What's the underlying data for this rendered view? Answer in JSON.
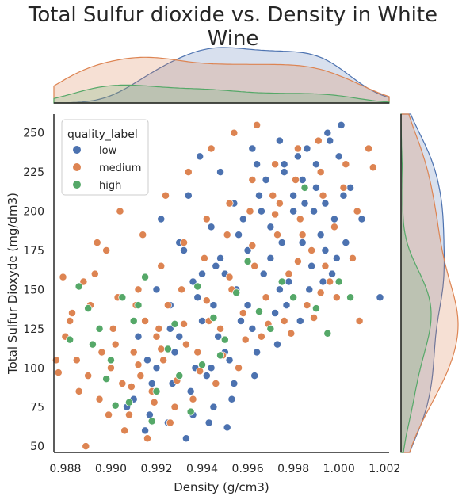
{
  "chart_data": {
    "type": "scatter",
    "title": "Total Sulfur dioxide vs. Density in White Wine",
    "xlabel": "Density (g/cm3)",
    "ylabel": "Total Sulfur Dioxyde (mg/dm3)",
    "xlim": [
      0.9875,
      1.0022
    ],
    "ylim": [
      46,
      262
    ],
    "x_ticks": [
      "0.988",
      "0.990",
      "0.992",
      "0.994",
      "0.996",
      "0.998",
      "1.000",
      "1.002"
    ],
    "x_tick_values": [
      0.988,
      0.99,
      0.992,
      0.994,
      0.996,
      0.998,
      1.0,
      1.002
    ],
    "y_ticks": [
      "50",
      "75",
      "100",
      "125",
      "150",
      "175",
      "200",
      "225",
      "250"
    ],
    "y_tick_values": [
      50,
      75,
      100,
      125,
      150,
      175,
      200,
      225,
      250
    ],
    "grid": false,
    "legend": {
      "title": "quality_label",
      "placement": "top-left"
    },
    "marginals": {
      "top": "kde of density by quality_label",
      "right": "kde of total sulfur dioxide by quality_label"
    },
    "series": [
      {
        "name": "low",
        "color": "#4c72b0",
        "points": [
          [
            0.993,
            120
          ],
          [
            0.9945,
            140
          ],
          [
            0.996,
            175
          ],
          [
            0.997,
            190
          ],
          [
            0.995,
            160
          ],
          [
            0.998,
            200
          ],
          [
            0.9965,
            210
          ],
          [
            0.9975,
            180
          ],
          [
            0.994,
            130
          ],
          [
            0.9955,
            150
          ],
          [
            0.9985,
            205
          ],
          [
            0.999,
            230
          ],
          [
            0.9995,
            250
          ],
          [
            0.9982,
            235
          ],
          [
            0.9968,
            220
          ],
          [
            0.9958,
            195
          ],
          [
            0.9948,
            170
          ],
          [
            0.9938,
            145
          ],
          [
            0.9928,
            110
          ],
          [
            0.9918,
            90
          ],
          [
            0.992,
            100
          ],
          [
            0.9935,
            85
          ],
          [
            0.9945,
            75
          ],
          [
            0.9925,
            65
          ],
          [
            0.9915,
            60
          ],
          [
            0.991,
            80
          ],
          [
            0.9942,
            95
          ],
          [
            0.9952,
            105
          ],
          [
            0.9962,
            125
          ],
          [
            0.9972,
            135
          ],
          [
            0.9978,
            155
          ],
          [
            0.9988,
            165
          ],
          [
            0.9992,
            185
          ],
          [
            0.9998,
            195
          ],
          [
            1.0002,
            210
          ],
          [
            1.0005,
            215
          ],
          [
            1.0001,
            255
          ],
          [
            0.9996,
            245
          ],
          [
            0.9986,
            240
          ],
          [
            0.9976,
            225
          ],
          [
            0.9966,
            200
          ],
          [
            0.9956,
            185
          ],
          [
            0.9946,
            165
          ],
          [
            0.9936,
            155
          ],
          [
            0.9926,
            140
          ],
          [
            0.9932,
            175
          ],
          [
            0.9944,
            190
          ],
          [
            0.9954,
            205
          ],
          [
            0.9964,
            230
          ],
          [
            0.9974,
            245
          ],
          [
            0.9984,
            220
          ],
          [
            0.9994,
            175
          ],
          [
            0.9997,
            160
          ],
          [
            0.9987,
            150
          ],
          [
            0.9977,
            140
          ],
          [
            0.9967,
            160
          ],
          [
            0.9957,
            130
          ],
          [
            0.9947,
            120
          ],
          [
            0.9937,
            100
          ],
          [
            0.9927,
            90
          ],
          [
            0.9917,
            70
          ],
          [
            0.9907,
            75
          ],
          [
            0.9933,
            55
          ],
          [
            0.9943,
            65
          ],
          [
            0.9953,
            80
          ],
          [
            0.9963,
            95
          ],
          [
            0.9973,
            115
          ],
          [
            0.9983,
            130
          ],
          [
            0.9993,
            155
          ],
          [
            1.0003,
            180
          ],
          [
            1.001,
            195
          ],
          [
            1.0018,
            145
          ],
          [
            1.0,
            235
          ],
          [
            0.999,
            215
          ],
          [
            0.998,
            210
          ],
          [
            0.997,
            170
          ],
          [
            0.996,
            140
          ],
          [
            0.995,
            110
          ],
          [
            0.994,
            160
          ],
          [
            0.993,
            180
          ],
          [
            0.992,
            150
          ],
          [
            0.9912,
            120
          ],
          [
            0.9922,
            195
          ],
          [
            0.9934,
            210
          ],
          [
            0.9948,
            225
          ],
          [
            0.9962,
            240
          ],
          [
            0.9976,
            230
          ],
          [
            0.9989,
            200
          ],
          [
            0.9999,
            170
          ],
          [
            0.9944,
            100
          ],
          [
            0.9954,
            90
          ],
          [
            0.9964,
            110
          ],
          [
            0.9974,
            150
          ],
          [
            0.9984,
            180
          ],
          [
            0.9994,
            205
          ],
          [
            0.9951,
            62
          ],
          [
            0.9936,
            70
          ],
          [
            0.9926,
            125
          ],
          [
            0.9916,
            105
          ],
          [
            0.9939,
            235
          ]
        ]
      },
      {
        "name": "medium",
        "color": "#dd8452",
        "points": [
          [
            0.99,
            100
          ],
          [
            0.991,
            110
          ],
          [
            0.992,
            120
          ],
          [
            0.9905,
            90
          ],
          [
            0.9915,
            130
          ],
          [
            0.9925,
            140
          ],
          [
            0.9895,
            80
          ],
          [
            0.989,
            95
          ],
          [
            0.9885,
            105
          ],
          [
            0.9908,
            70
          ],
          [
            0.9918,
            85
          ],
          [
            0.9928,
            75
          ],
          [
            0.9938,
            110
          ],
          [
            0.9948,
            125
          ],
          [
            0.9958,
            135
          ],
          [
            0.9968,
            145
          ],
          [
            0.9978,
            160
          ],
          [
            0.9988,
            175
          ],
          [
            0.9998,
            190
          ],
          [
            1.0008,
            200
          ],
          [
            0.9912,
            150
          ],
          [
            0.9922,
            165
          ],
          [
            0.9932,
            180
          ],
          [
            0.9942,
            195
          ],
          [
            0.9952,
            205
          ],
          [
            0.9962,
            220
          ],
          [
            0.9972,
            230
          ],
          [
            0.9982,
            240
          ],
          [
            0.9992,
            225
          ],
          [
            1.0002,
            215
          ],
          [
            0.988,
            120
          ],
          [
            0.9883,
            135
          ],
          [
            0.9888,
            155
          ],
          [
            0.9893,
            160
          ],
          [
            0.9898,
            175
          ],
          [
            0.9903,
            145
          ],
          [
            0.9913,
            95
          ],
          [
            0.9923,
            105
          ],
          [
            0.9933,
            115
          ],
          [
            0.9943,
            130
          ],
          [
            0.9953,
            150
          ],
          [
            0.9963,
            165
          ],
          [
            0.9973,
            185
          ],
          [
            0.9983,
            195
          ],
          [
            0.9993,
            210
          ],
          [
            1.0003,
            230
          ],
          [
            1.0013,
            240
          ],
          [
            0.9906,
            60
          ],
          [
            0.9916,
            55
          ],
          [
            0.9926,
            65
          ],
          [
            0.9936,
            80
          ],
          [
            0.9946,
            90
          ],
          [
            0.9956,
            100
          ],
          [
            0.9966,
            120
          ],
          [
            0.9976,
            130
          ],
          [
            0.9986,
            140
          ],
          [
            0.9996,
            155
          ],
          [
            1.0006,
            170
          ],
          [
            0.9911,
            140
          ],
          [
            0.9921,
            125
          ],
          [
            0.9931,
            150
          ],
          [
            0.9941,
            170
          ],
          [
            0.9951,
            185
          ],
          [
            0.9961,
            200
          ],
          [
            0.9971,
            210
          ],
          [
            0.9981,
            220
          ],
          [
            0.9991,
            245
          ],
          [
            0.9886,
            85
          ],
          [
            0.9896,
            110
          ],
          [
            0.9901,
            125
          ],
          [
            0.9891,
            140
          ],
          [
            0.9876,
            105
          ],
          [
            0.9879,
            158
          ],
          [
            0.9882,
            130
          ],
          [
            0.9894,
            180
          ],
          [
            0.9904,
            200
          ],
          [
            0.9914,
            185
          ],
          [
            0.9924,
            210
          ],
          [
            0.9934,
            225
          ],
          [
            0.9944,
            240
          ],
          [
            0.9954,
            250
          ],
          [
            0.9964,
            255
          ],
          [
            0.9974,
            205
          ],
          [
            0.9984,
            185
          ],
          [
            0.9994,
            165
          ],
          [
            0.9889,
            50
          ],
          [
            0.9899,
            70
          ],
          [
            0.9909,
            88
          ],
          [
            0.9919,
            78
          ],
          [
            0.9929,
            92
          ],
          [
            0.9939,
            98
          ],
          [
            0.9949,
            108
          ],
          [
            0.9959,
            118
          ],
          [
            0.9969,
            128
          ],
          [
            0.9979,
            122
          ],
          [
            0.9989,
            132
          ],
          [
            0.9999,
            145
          ],
          [
            1.0009,
            130
          ],
          [
            1.0015,
            228
          ],
          [
            0.9877,
            97
          ],
          [
            0.9902,
            115
          ],
          [
            0.9912,
            102
          ],
          [
            0.9922,
            112
          ],
          [
            0.9932,
            128
          ],
          [
            0.9942,
            143
          ],
          [
            0.9952,
            158
          ],
          [
            0.9962,
            178
          ],
          [
            0.9972,
            198
          ],
          [
            0.9982,
            168
          ],
          [
            0.9992,
            148
          ]
        ]
      },
      {
        "name": "high",
        "color": "#55a868",
        "points": [
          [
            0.989,
            138
          ],
          [
            0.9895,
            125
          ],
          [
            0.99,
            105
          ],
          [
            0.9905,
            145
          ],
          [
            0.991,
            130
          ],
          [
            0.9915,
            158
          ],
          [
            0.992,
            85
          ],
          [
            0.9925,
            112
          ],
          [
            0.993,
            95
          ],
          [
            0.9935,
            72
          ],
          [
            0.994,
            102
          ],
          [
            0.9945,
            132
          ],
          [
            0.995,
            118
          ],
          [
            0.9955,
            148
          ],
          [
            0.996,
            168
          ],
          [
            0.9965,
            136
          ],
          [
            0.997,
            125
          ],
          [
            0.9975,
            155
          ],
          [
            0.998,
            145
          ],
          [
            0.9985,
            215
          ],
          [
            0.999,
            138
          ],
          [
            0.9995,
            122
          ],
          [
            1.0,
            155
          ],
          [
            1.0005,
            145
          ],
          [
            0.9898,
            93
          ],
          [
            0.9908,
            78
          ],
          [
            0.9918,
            66
          ],
          [
            0.9928,
            128
          ],
          [
            0.9938,
            152
          ],
          [
            0.9948,
            108
          ],
          [
            0.9882,
            118
          ],
          [
            0.9886,
            152
          ],
          [
            0.9892,
            115
          ],
          [
            0.9902,
            76
          ],
          [
            0.9912,
            140
          ]
        ]
      }
    ]
  }
}
